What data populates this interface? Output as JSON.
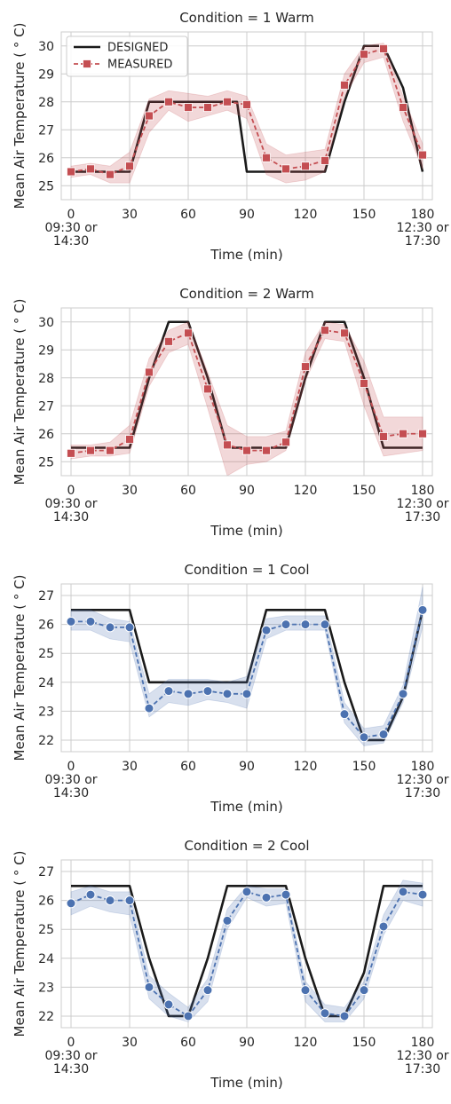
{
  "chart_data": [
    {
      "type": "line",
      "title": "Condition = 1 Warm",
      "xlabel": "Time (min)",
      "ylabel": "Mean Air Temperature ($^\\circ$C)",
      "ylabel_display": "Mean Air Temperature ( ° C)",
      "xlim": [
        -5,
        185
      ],
      "ylim": [
        24.5,
        30.5
      ],
      "xticks": [
        0,
        30,
        60,
        90,
        120,
        150,
        180
      ],
      "xtick_labels": [
        "0\n09:30 or\n14:30",
        "30",
        "60",
        "90",
        "120",
        "150",
        "180\n12:30 or\n17:30"
      ],
      "yticks": [
        25,
        26,
        27,
        28,
        29,
        30
      ],
      "grid": true,
      "legend": {
        "placement": "top-left",
        "entries": [
          "DESIGNED",
          "MEASURED"
        ]
      },
      "series": [
        {
          "name": "DESIGNED",
          "color": "#1a1a1a",
          "style": "solid",
          "x": [
            0,
            30,
            40,
            85,
            90,
            130,
            140,
            150,
            160,
            170,
            180
          ],
          "y": [
            25.5,
            25.5,
            28.0,
            28.0,
            25.5,
            25.5,
            28.0,
            30.0,
            30.0,
            28.5,
            25.5
          ]
        },
        {
          "name": "MEASURED",
          "color": "#c44e52",
          "style": "dashed",
          "marker": "square",
          "x": [
            0,
            10,
            20,
            30,
            40,
            50,
            60,
            70,
            80,
            90,
            100,
            110,
            120,
            130,
            140,
            150,
            160,
            170,
            180
          ],
          "y": [
            25.5,
            25.6,
            25.4,
            25.7,
            27.5,
            28.0,
            27.8,
            27.8,
            28.0,
            27.9,
            26.0,
            25.6,
            25.7,
            25.9,
            28.6,
            29.7,
            29.9,
            27.8,
            26.1
          ],
          "band_low": [
            25.3,
            25.4,
            25.1,
            25.1,
            26.9,
            27.7,
            27.3,
            27.5,
            27.7,
            27.4,
            25.4,
            25.1,
            25.2,
            25.5,
            28.2,
            29.4,
            29.6,
            27.3,
            25.6
          ],
          "band_high": [
            25.7,
            25.8,
            25.7,
            26.2,
            28.1,
            28.4,
            28.3,
            28.2,
            28.4,
            28.2,
            26.5,
            26.1,
            26.2,
            26.3,
            29.0,
            30.0,
            30.1,
            28.2,
            26.5
          ]
        }
      ]
    },
    {
      "type": "line",
      "title": "Condition = 2 Warm",
      "xlabel": "Time (min)",
      "ylabel": "Mean Air Temperature ($^\\circ$C)",
      "ylabel_display": "Mean Air Temperature ( ° C)",
      "xlim": [
        -5,
        185
      ],
      "ylim": [
        24.5,
        30.5
      ],
      "xticks": [
        0,
        30,
        60,
        90,
        120,
        150,
        180
      ],
      "xtick_labels": [
        "0\n09:30 or\n14:30",
        "30",
        "60",
        "90",
        "120",
        "150",
        "180\n12:30 or\n17:30"
      ],
      "yticks": [
        25,
        26,
        27,
        28,
        29,
        30
      ],
      "grid": true,
      "series": [
        {
          "name": "DESIGNED",
          "color": "#1a1a1a",
          "style": "solid",
          "x": [
            0,
            30,
            40,
            50,
            60,
            70,
            80,
            110,
            120,
            130,
            140,
            150,
            160,
            180
          ],
          "y": [
            25.5,
            25.5,
            28.0,
            30.0,
            30.0,
            28.0,
            25.5,
            25.5,
            28.0,
            30.0,
            30.0,
            28.0,
            25.5,
            25.5
          ]
        },
        {
          "name": "MEASURED",
          "color": "#c44e52",
          "style": "dashed",
          "marker": "square",
          "x": [
            0,
            10,
            20,
            30,
            40,
            50,
            60,
            70,
            80,
            90,
            100,
            110,
            120,
            130,
            140,
            150,
            160,
            170,
            180
          ],
          "y": [
            25.3,
            25.4,
            25.4,
            25.8,
            28.2,
            29.3,
            29.6,
            27.6,
            25.6,
            25.4,
            25.4,
            25.7,
            28.4,
            29.7,
            29.6,
            27.8,
            25.9,
            26.0,
            26.0
          ],
          "band_low": [
            25.1,
            25.2,
            25.2,
            25.3,
            27.7,
            28.9,
            29.2,
            26.9,
            24.5,
            24.9,
            25.0,
            25.4,
            27.9,
            29.4,
            29.3,
            27.0,
            25.2,
            25.3,
            25.4
          ],
          "band_high": [
            25.6,
            25.6,
            25.7,
            26.3,
            28.7,
            29.7,
            30.0,
            28.2,
            26.3,
            25.9,
            25.9,
            26.1,
            28.9,
            30.0,
            29.9,
            28.6,
            26.6,
            26.6,
            26.6
          ]
        }
      ]
    },
    {
      "type": "line",
      "title": "Condition = 1 Cool",
      "xlabel": "Time (min)",
      "ylabel": "Mean Air Temperature ($^\\circ$C)",
      "ylabel_display": "Mean Air Temperature ( ° C)",
      "xlim": [
        -5,
        185
      ],
      "ylim": [
        21.6,
        27.4
      ],
      "xticks": [
        0,
        30,
        60,
        90,
        120,
        150,
        180
      ],
      "xtick_labels": [
        "0\n09:30 or\n14:30",
        "30",
        "60",
        "90",
        "120",
        "150",
        "180\n12:30 or\n17:30"
      ],
      "yticks": [
        22,
        23,
        24,
        25,
        26,
        27
      ],
      "grid": true,
      "series": [
        {
          "name": "DESIGNED",
          "color": "#1a1a1a",
          "style": "solid",
          "x": [
            0,
            30,
            40,
            90,
            100,
            130,
            140,
            150,
            160,
            170,
            180
          ],
          "y": [
            26.5,
            26.5,
            24.0,
            24.0,
            26.5,
            26.5,
            24.0,
            22.0,
            22.0,
            23.5,
            26.5
          ]
        },
        {
          "name": "MEASURED",
          "color": "#4c72b0",
          "style": "dashed",
          "marker": "circle",
          "x": [
            0,
            10,
            20,
            30,
            40,
            50,
            60,
            70,
            80,
            90,
            100,
            110,
            120,
            130,
            140,
            150,
            160,
            170,
            180
          ],
          "y": [
            26.1,
            26.1,
            25.9,
            25.9,
            23.1,
            23.7,
            23.6,
            23.7,
            23.6,
            23.6,
            25.8,
            26.0,
            26.0,
            26.0,
            22.9,
            22.1,
            22.2,
            23.6,
            26.5
          ],
          "band_low": [
            25.8,
            25.8,
            25.5,
            25.4,
            22.8,
            23.3,
            23.2,
            23.4,
            23.3,
            23.1,
            25.5,
            25.8,
            25.8,
            25.8,
            22.6,
            21.8,
            21.9,
            23.3,
            25.9
          ],
          "band_high": [
            26.5,
            26.5,
            26.2,
            26.1,
            23.6,
            24.1,
            24.1,
            24.1,
            24.0,
            24.2,
            26.2,
            26.3,
            26.3,
            26.3,
            23.3,
            22.4,
            22.5,
            23.9,
            27.3
          ]
        }
      ]
    },
    {
      "type": "line",
      "title": "Condition = 2 Cool",
      "xlabel": "Time (min)",
      "ylabel": "Mean Air Temperature ($^\\circ$C)",
      "ylabel_display": "Mean Air Temperature ( ° C)",
      "xlim": [
        -5,
        185
      ],
      "ylim": [
        21.6,
        27.4
      ],
      "xticks": [
        0,
        30,
        60,
        90,
        120,
        150,
        180
      ],
      "xtick_labels": [
        "0\n09:30 or\n14:30",
        "30",
        "60",
        "90",
        "120",
        "150",
        "180\n12:30 or\n17:30"
      ],
      "yticks": [
        22,
        23,
        24,
        25,
        26,
        27
      ],
      "grid": true,
      "series": [
        {
          "name": "DESIGNED",
          "color": "#1a1a1a",
          "style": "solid",
          "x": [
            0,
            30,
            40,
            50,
            60,
            70,
            80,
            110,
            120,
            130,
            140,
            150,
            160,
            180
          ],
          "y": [
            26.5,
            26.5,
            24.0,
            22.0,
            22.0,
            24.0,
            26.5,
            26.5,
            24.0,
            22.0,
            22.0,
            23.5,
            26.5,
            26.5
          ]
        },
        {
          "name": "MEASURED",
          "color": "#4c72b0",
          "style": "dashed",
          "marker": "circle",
          "x": [
            0,
            10,
            20,
            30,
            40,
            50,
            60,
            70,
            80,
            90,
            100,
            110,
            120,
            130,
            140,
            150,
            160,
            170,
            180
          ],
          "y": [
            25.9,
            26.2,
            26.0,
            26.0,
            23.0,
            22.4,
            22.0,
            22.9,
            25.3,
            26.3,
            26.1,
            26.2,
            22.9,
            22.1,
            22.0,
            22.9,
            25.1,
            26.3,
            26.2
          ],
          "band_low": [
            25.5,
            25.8,
            25.6,
            25.5,
            22.6,
            22.0,
            21.8,
            22.5,
            25.0,
            26.1,
            25.8,
            25.9,
            22.5,
            21.8,
            21.8,
            22.6,
            24.8,
            26.0,
            25.8
          ],
          "band_high": [
            26.3,
            26.5,
            26.3,
            26.3,
            23.4,
            22.8,
            22.3,
            23.3,
            25.7,
            26.5,
            26.4,
            26.4,
            23.2,
            22.4,
            22.3,
            23.2,
            25.5,
            26.7,
            26.6
          ]
        }
      ]
    }
  ]
}
